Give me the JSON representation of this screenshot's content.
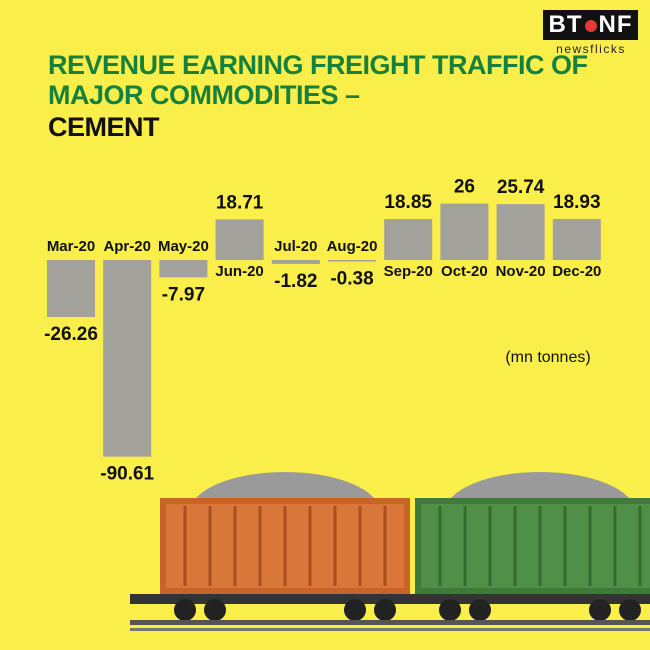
{
  "header": {
    "logo": [
      "BT",
      "NF"
    ],
    "logo_sub": "newsflicks"
  },
  "chart_data": {
    "type": "bar",
    "title": "REVENUE EARNING FREIGHT TRAFFIC OF MAJOR COMMODITIES –",
    "subtitle": "CEMENT",
    "unit_label": "(mn tonnes)",
    "categories": [
      "Mar-20",
      "Apr-20",
      "May-20",
      "Jun-20",
      "Jul-20",
      "Aug-20",
      "Sep-20",
      "Oct-20",
      "Nov-20",
      "Dec-20"
    ],
    "values": [
      -26.26,
      -90.61,
      -7.97,
      18.71,
      -1.82,
      -0.38,
      18.85,
      26,
      25.74,
      18.93
    ],
    "color": "#a3a19b"
  }
}
